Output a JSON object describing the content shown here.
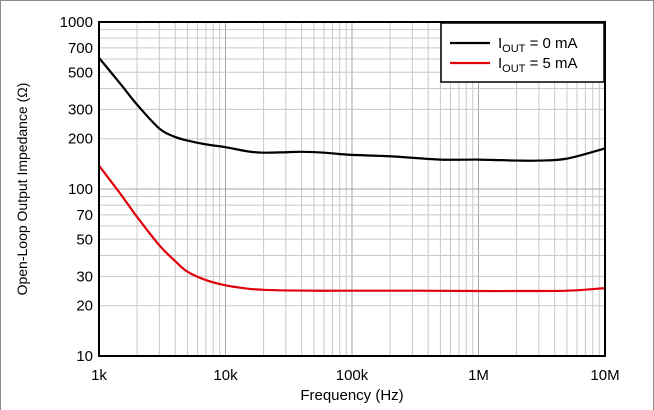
{
  "chart_data": {
    "type": "line",
    "xlabel": "Frequency (Hz)",
    "ylabel": "Open-Loop Output Impedance (Ω)",
    "x_scale": "log",
    "y_scale": "log",
    "xlim": [
      1000,
      10000000
    ],
    "ylim": [
      10,
      1000
    ],
    "grid": true,
    "legend_position": "top-right",
    "x_ticks": [
      {
        "value": 1000,
        "label": "1k"
      },
      {
        "value": 10000,
        "label": "10k"
      },
      {
        "value": 100000,
        "label": "100k"
      },
      {
        "value": 1000000,
        "label": "1M"
      },
      {
        "value": 10000000,
        "label": "10M"
      }
    ],
    "y_ticks": [
      {
        "value": 10,
        "label": "10"
      },
      {
        "value": 20,
        "label": "20"
      },
      {
        "value": 30,
        "label": "30"
      },
      {
        "value": 50,
        "label": "50"
      },
      {
        "value": 70,
        "label": "70"
      },
      {
        "value": 100,
        "label": "100"
      },
      {
        "value": 200,
        "label": "200"
      },
      {
        "value": 300,
        "label": "300"
      },
      {
        "value": 500,
        "label": "500"
      },
      {
        "value": 700,
        "label": "700"
      },
      {
        "value": 1000,
        "label": "1000"
      }
    ],
    "series": [
      {
        "name": "I_OUT = 0 mA",
        "legend": {
          "main": "I",
          "sub": "OUT",
          "rest": " = 0 mA"
        },
        "color": "#000000",
        "x": [
          1000,
          1500,
          2000,
          3000,
          4000,
          5000,
          7000,
          10000,
          15000,
          20000,
          30000,
          40000,
          60000,
          100000,
          200000,
          500000,
          1000000,
          2000000,
          3000000,
          5000000,
          10000000
        ],
        "y": [
          610,
          420,
          320,
          230,
          205,
          195,
          185,
          178,
          168,
          165,
          166,
          167,
          165,
          160,
          157,
          150,
          150,
          148,
          148,
          152,
          175
        ]
      },
      {
        "name": "I_OUT = 5 mA",
        "legend": {
          "main": "I",
          "sub": "OUT",
          "rest": " = 5 mA"
        },
        "color": "#e0000b",
        "x": [
          1000,
          1500,
          2000,
          3000,
          4000,
          5000,
          7000,
          10000,
          15000,
          20000,
          30000,
          50000,
          100000,
          300000,
          1000000,
          2000000,
          5000000,
          10000000
        ],
        "y": [
          138,
          92,
          68,
          46,
          37,
          32,
          28.5,
          26.5,
          25.3,
          24.9,
          24.7,
          24.6,
          24.6,
          24.6,
          24.5,
          24.5,
          24.6,
          25.5
        ]
      }
    ]
  }
}
